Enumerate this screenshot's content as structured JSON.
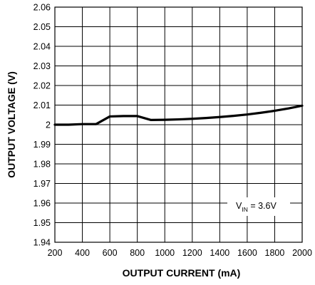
{
  "chart_data": {
    "type": "line",
    "xlabel": "OUTPUT CURRENT (mA)",
    "ylabel": "OUTPUT VOLTAGE (V)",
    "xlim": [
      200,
      2000
    ],
    "ylim": [
      1.94,
      2.06
    ],
    "x_ticks": [
      "200",
      "400",
      "600",
      "800",
      "1000",
      "1200",
      "1400",
      "1600",
      "1800",
      "2000"
    ],
    "y_ticks": [
      "2.06",
      "2.05",
      "2.04",
      "2.03",
      "2.02",
      "2.01",
      "2",
      "1.99",
      "1.98",
      "1.97",
      "1.96",
      "1.95",
      "1.94"
    ],
    "grid": true,
    "series": [
      {
        "x": [
          200,
          300,
          400,
          500,
          600,
          700,
          800,
          900,
          1000,
          1100,
          1200,
          1300,
          1400,
          1500,
          1600,
          1700,
          1800,
          1900,
          2000
        ],
        "values": [
          2.0,
          2.0,
          2.0003,
          2.0003,
          2.0042,
          2.0044,
          2.0044,
          2.0024,
          2.0025,
          2.0027,
          2.003,
          2.0034,
          2.0039,
          2.0045,
          2.0052,
          2.0061,
          2.0071,
          2.0083,
          2.0097
        ]
      }
    ],
    "annotation": {
      "main": "V",
      "sub": "IN",
      "rest": " = 3.6V"
    },
    "colors": {
      "line": "#000000",
      "grid": "#000000",
      "background": "#ffffff"
    }
  }
}
